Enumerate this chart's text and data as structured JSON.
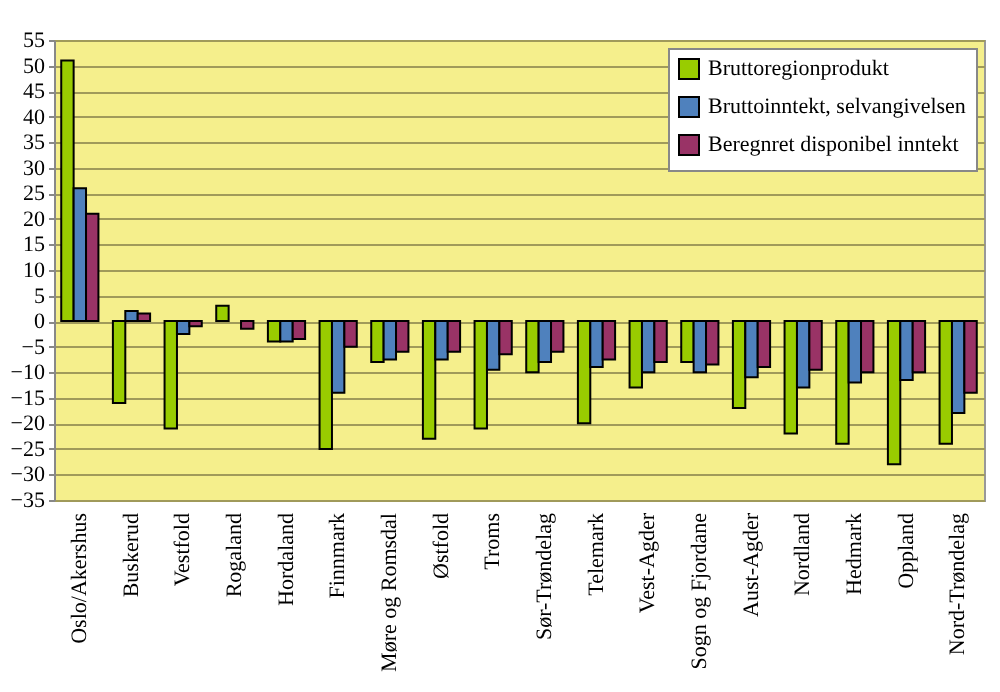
{
  "chart_data": {
    "type": "bar",
    "categories": [
      "Oslo/Akershus",
      "Buskerud",
      "Vestfold",
      "Rogaland",
      "Hordaland",
      "Finnmark",
      "Møre og Romsdal",
      "Østfold",
      "Troms",
      "Sør-Trøndelag",
      "Telemark",
      "Vest-Agder",
      "Sogn og Fjordane",
      "Aust-Agder",
      "Nordland",
      "Hedmark",
      "Oppland",
      "Nord-Trøndelag"
    ],
    "series": [
      {
        "name": "Bruttoregionprodukt",
        "color": "#99cc00",
        "values": [
          51,
          -16,
          -21,
          3,
          -4,
          -25,
          -8,
          -23,
          -21,
          -10,
          -20,
          -13,
          -8,
          -17,
          -22,
          -24,
          -28,
          -24
        ]
      },
      {
        "name": "Bruttoinntekt, selvangivelsen",
        "color": "#4f81bd",
        "values": [
          26,
          2,
          -2.5,
          null,
          -4,
          -14,
          -7.5,
          -7.5,
          -9.5,
          -8,
          -9,
          -10,
          -10,
          -11,
          -13,
          -12,
          -11.5,
          -18
        ]
      },
      {
        "name": "Beregnret disponibel inntekt",
        "color": "#993366",
        "values": [
          21,
          1.5,
          -1,
          -1.5,
          -3.5,
          -5,
          -6,
          -6,
          -6.5,
          -6,
          -7.5,
          -8,
          -8.5,
          -9,
          -9.5,
          -10,
          -10,
          -14
        ]
      }
    ],
    "ylim": [
      -35,
      55
    ],
    "yticks": [
      -35,
      -30,
      -25,
      -20,
      -15,
      -10,
      -5,
      0,
      5,
      10,
      15,
      20,
      25,
      30,
      35,
      40,
      45,
      50,
      55
    ],
    "grid": "y",
    "legend": "top right"
  }
}
